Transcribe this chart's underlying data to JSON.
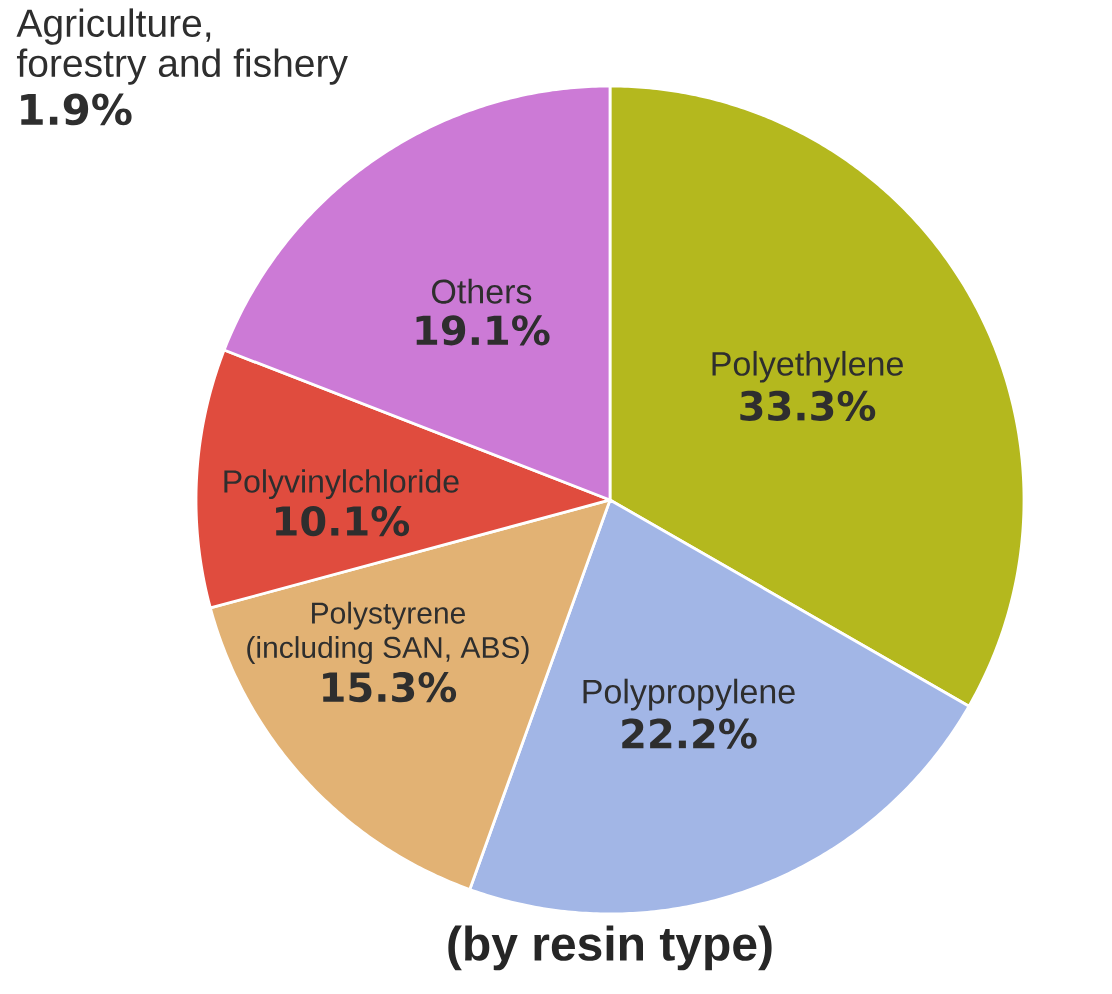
{
  "chart_data": {
    "type": "pie",
    "title": "(by resin type)",
    "categories": [
      "Polyethylene",
      "Polypropylene",
      "Polystyrene (including SAN, ABS)",
      "Polyvinylchloride",
      "Others"
    ],
    "values": [
      33.3,
      22.2,
      15.3,
      10.1,
      19.1
    ],
    "colors": [
      "#b4b81e",
      "#a2b6e6",
      "#e2b274",
      "#e04c3e",
      "#cc7ad6"
    ],
    "value_labels": [
      "33.3%",
      "22.2%",
      "15.3%",
      "10.1%",
      "19.1%"
    ],
    "annotations": [
      "Agriculture, forestry and fishery",
      "1.9%"
    ]
  }
}
